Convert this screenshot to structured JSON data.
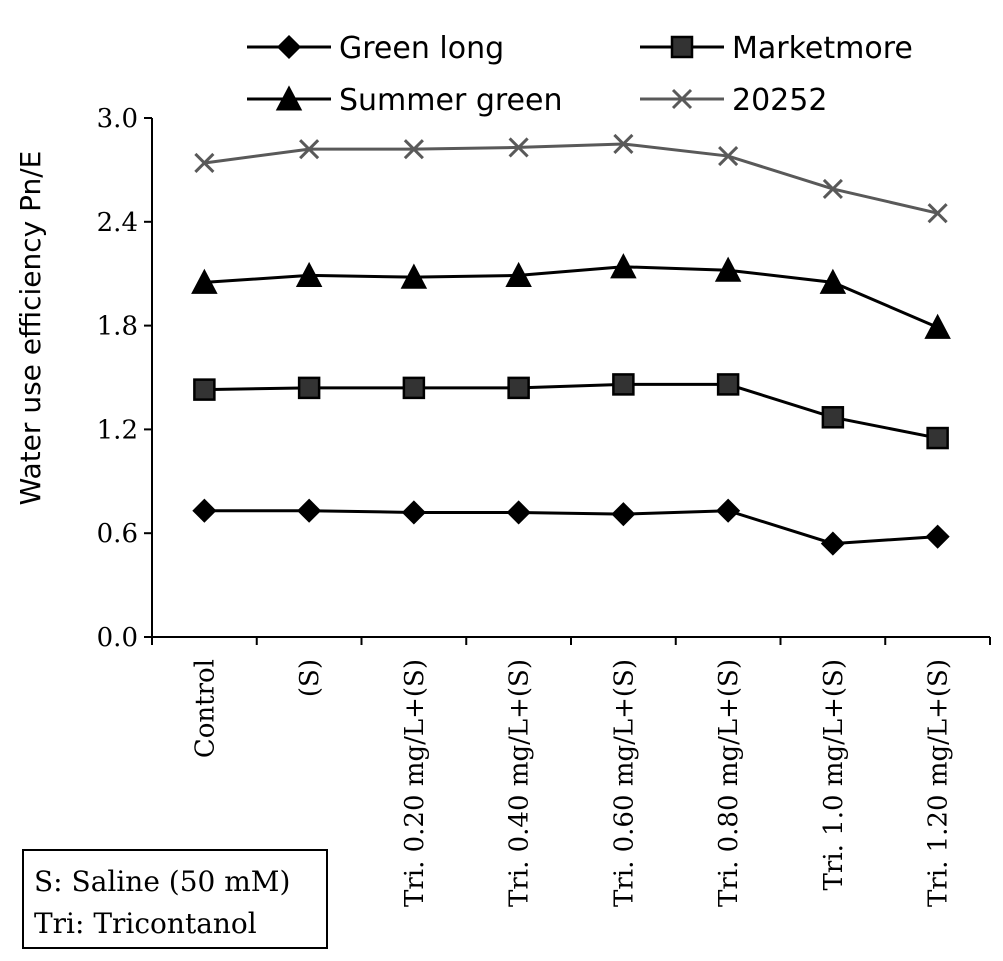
{
  "chart_data": {
    "type": "line",
    "ylabel": "Water use efficiency Pn/E",
    "xlabel": "",
    "ylim": [
      0.0,
      3.0
    ],
    "yticks": [
      "0.0",
      "0.6",
      "1.2",
      "1.8",
      "2.4",
      "3.0"
    ],
    "categories": [
      "Control",
      "(S)",
      "Tri. 0.20 mg/L+(S)",
      "Tri. 0.40 mg/L+(S)",
      "Tri. 0.60 mg/L+(S)",
      "Tri. 0.80 mg/L+(S)",
      "Tri. 1.0 mg/L+(S)",
      "Tri. 1.20 mg/L+(S)"
    ],
    "series": [
      {
        "name": "Green long",
        "marker": "diamond",
        "color": "#000000",
        "values": [
          0.73,
          0.73,
          0.72,
          0.72,
          0.71,
          0.73,
          0.54,
          0.58
        ]
      },
      {
        "name": "Marketmore",
        "marker": "square",
        "color": "#000000",
        "values": [
          1.43,
          1.44,
          1.44,
          1.44,
          1.46,
          1.46,
          1.27,
          1.15
        ]
      },
      {
        "name": "Summer green",
        "marker": "triangle",
        "color": "#000000",
        "values": [
          2.05,
          2.09,
          2.08,
          2.09,
          2.14,
          2.12,
          2.05,
          1.79
        ]
      },
      {
        "name": "20252",
        "marker": "x",
        "color": "#595959",
        "values": [
          2.74,
          2.82,
          2.82,
          2.83,
          2.85,
          2.78,
          2.59,
          2.45
        ]
      }
    ],
    "grid": false,
    "legend_position": "top"
  },
  "note": {
    "line1": "S: Saline (50 mM)",
    "line2": "Tri: Tricontanol"
  }
}
